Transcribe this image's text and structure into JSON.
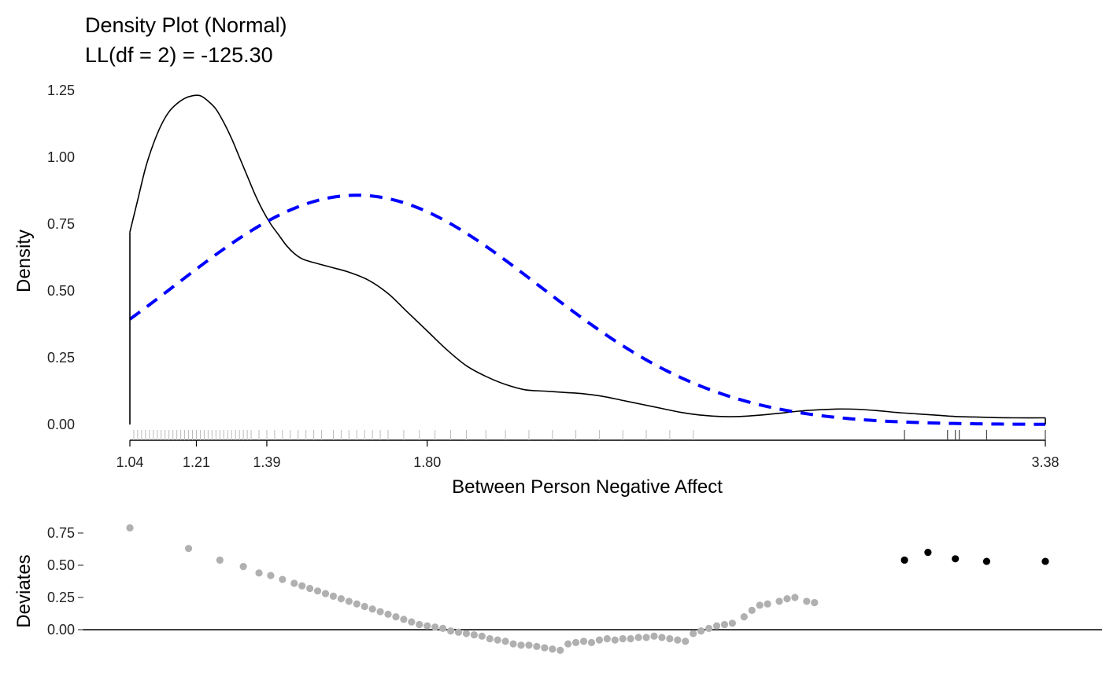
{
  "chart_data": [
    {
      "type": "line",
      "title": "Density Plot (Normal)",
      "subtitle": "LL(df = 2) = -125.30",
      "xlabel": "Between Person Negative Affect",
      "ylabel": "Density",
      "xlim": [
        1.04,
        3.38
      ],
      "ylim": [
        0,
        1.25
      ],
      "x_ticks": [
        "1.04",
        "1.21",
        "1.39",
        "1.80",
        "3.38"
      ],
      "y_ticks": [
        "0.00",
        "0.25",
        "0.50",
        "0.75",
        "1.00",
        "1.25"
      ],
      "grid": false,
      "colors": {
        "empirical": "#000000",
        "normal": "#0000ff",
        "rug": "#bbbbbb",
        "rug_outlier": "#444444"
      },
      "series": [
        {
          "style": "solid",
          "x": [
            1.04,
            1.06,
            1.08,
            1.1,
            1.12,
            1.14,
            1.16,
            1.18,
            1.2,
            1.22,
            1.24,
            1.26,
            1.28,
            1.3,
            1.32,
            1.34,
            1.36,
            1.38,
            1.4,
            1.42,
            1.44,
            1.46,
            1.48,
            1.5,
            1.55,
            1.6,
            1.65,
            1.7,
            1.75,
            1.8,
            1.85,
            1.9,
            1.95,
            2.0,
            2.05,
            2.1,
            2.15,
            2.2,
            2.25,
            2.3,
            2.35,
            2.4,
            2.45,
            2.5,
            2.55,
            2.6,
            2.65,
            2.7,
            2.75,
            2.8,
            2.85,
            2.9,
            2.95,
            3.0,
            3.05,
            3.1,
            3.15,
            3.2,
            3.25,
            3.3,
            3.38
          ],
          "y": [
            0.72,
            0.84,
            0.96,
            1.05,
            1.12,
            1.17,
            1.2,
            1.22,
            1.23,
            1.23,
            1.21,
            1.18,
            1.13,
            1.07,
            1.0,
            0.93,
            0.86,
            0.8,
            0.75,
            0.71,
            0.67,
            0.64,
            0.62,
            0.61,
            0.59,
            0.57,
            0.54,
            0.49,
            0.42,
            0.35,
            0.28,
            0.22,
            0.18,
            0.15,
            0.13,
            0.125,
            0.12,
            0.115,
            0.105,
            0.09,
            0.075,
            0.06,
            0.045,
            0.035,
            0.03,
            0.03,
            0.035,
            0.042,
            0.05,
            0.055,
            0.058,
            0.057,
            0.052,
            0.045,
            0.04,
            0.035,
            0.03,
            0.028,
            0.026,
            0.025,
            0.025
          ]
        },
        {
          "style": "dashed",
          "mean": 1.62,
          "sd": 0.465
        }
      ],
      "rug": [
        1.05,
        1.06,
        1.07,
        1.08,
        1.09,
        1.1,
        1.11,
        1.12,
        1.13,
        1.14,
        1.15,
        1.16,
        1.17,
        1.18,
        1.19,
        1.2,
        1.21,
        1.22,
        1.23,
        1.24,
        1.25,
        1.26,
        1.27,
        1.28,
        1.29,
        1.3,
        1.31,
        1.32,
        1.33,
        1.34,
        1.35,
        1.37,
        1.39,
        1.41,
        1.43,
        1.45,
        1.47,
        1.49,
        1.51,
        1.53,
        1.56,
        1.58,
        1.6,
        1.62,
        1.64,
        1.66,
        1.68,
        1.7,
        1.74,
        1.78,
        1.82,
        1.86,
        1.9,
        1.95,
        2.0,
        2.06,
        2.12,
        2.18,
        2.24,
        2.3,
        2.36,
        2.42,
        2.48
      ],
      "rug_outliers": [
        3.02,
        3.13,
        3.15,
        3.16,
        3.23,
        3.38
      ]
    },
    {
      "type": "scatter",
      "ylabel": "Deviates",
      "ylim": [
        -0.15,
        0.8
      ],
      "y_ticks": [
        "0.00",
        "0.25",
        "0.50",
        "0.75"
      ],
      "grid": false,
      "colors": {
        "points": "#b0b0b0",
        "extreme": "#000000",
        "zero_line": "#000000"
      },
      "points": [
        {
          "x": 1.04,
          "y": 0.79
        },
        {
          "x": 1.19,
          "y": 0.63
        },
        {
          "x": 1.27,
          "y": 0.54
        },
        {
          "x": 1.33,
          "y": 0.49
        },
        {
          "x": 1.37,
          "y": 0.44
        },
        {
          "x": 1.4,
          "y": 0.42
        },
        {
          "x": 1.43,
          "y": 0.39
        },
        {
          "x": 1.46,
          "y": 0.36
        },
        {
          "x": 1.48,
          "y": 0.34
        },
        {
          "x": 1.5,
          "y": 0.32
        },
        {
          "x": 1.52,
          "y": 0.3
        },
        {
          "x": 1.54,
          "y": 0.28
        },
        {
          "x": 1.56,
          "y": 0.26
        },
        {
          "x": 1.58,
          "y": 0.24
        },
        {
          "x": 1.6,
          "y": 0.22
        },
        {
          "x": 1.62,
          "y": 0.2
        },
        {
          "x": 1.64,
          "y": 0.18
        },
        {
          "x": 1.66,
          "y": 0.16
        },
        {
          "x": 1.68,
          "y": 0.14
        },
        {
          "x": 1.7,
          "y": 0.12
        },
        {
          "x": 1.72,
          "y": 0.1
        },
        {
          "x": 1.74,
          "y": 0.08
        },
        {
          "x": 1.76,
          "y": 0.06
        },
        {
          "x": 1.78,
          "y": 0.04
        },
        {
          "x": 1.8,
          "y": 0.03
        },
        {
          "x": 1.82,
          "y": 0.02
        },
        {
          "x": 1.84,
          "y": 0.01
        },
        {
          "x": 1.86,
          "y": -0.01
        },
        {
          "x": 1.88,
          "y": -0.02
        },
        {
          "x": 1.9,
          "y": -0.03
        },
        {
          "x": 1.92,
          "y": -0.04
        },
        {
          "x": 1.94,
          "y": -0.05
        },
        {
          "x": 1.96,
          "y": -0.07
        },
        {
          "x": 1.98,
          "y": -0.08
        },
        {
          "x": 2.0,
          "y": -0.09
        },
        {
          "x": 2.02,
          "y": -0.11
        },
        {
          "x": 2.04,
          "y": -0.12
        },
        {
          "x": 2.06,
          "y": -0.12
        },
        {
          "x": 2.08,
          "y": -0.13
        },
        {
          "x": 2.1,
          "y": -0.14
        },
        {
          "x": 2.12,
          "y": -0.15
        },
        {
          "x": 2.14,
          "y": -0.16
        },
        {
          "x": 2.16,
          "y": -0.11
        },
        {
          "x": 2.18,
          "y": -0.1
        },
        {
          "x": 2.2,
          "y": -0.09
        },
        {
          "x": 2.22,
          "y": -0.1
        },
        {
          "x": 2.24,
          "y": -0.08
        },
        {
          "x": 2.26,
          "y": -0.07
        },
        {
          "x": 2.28,
          "y": -0.08
        },
        {
          "x": 2.3,
          "y": -0.07
        },
        {
          "x": 2.32,
          "y": -0.07
        },
        {
          "x": 2.34,
          "y": -0.06
        },
        {
          "x": 2.36,
          "y": -0.06
        },
        {
          "x": 2.38,
          "y": -0.05
        },
        {
          "x": 2.4,
          "y": -0.06
        },
        {
          "x": 2.42,
          "y": -0.07
        },
        {
          "x": 2.44,
          "y": -0.08
        },
        {
          "x": 2.46,
          "y": -0.09
        },
        {
          "x": 2.48,
          "y": -0.03
        },
        {
          "x": 2.5,
          "y": -0.01
        },
        {
          "x": 2.52,
          "y": 0.01
        },
        {
          "x": 2.54,
          "y": 0.03
        },
        {
          "x": 2.56,
          "y": 0.04
        },
        {
          "x": 2.58,
          "y": 0.05
        },
        {
          "x": 2.61,
          "y": 0.1
        },
        {
          "x": 2.63,
          "y": 0.15
        },
        {
          "x": 2.65,
          "y": 0.19
        },
        {
          "x": 2.67,
          "y": 0.2
        },
        {
          "x": 2.7,
          "y": 0.22
        },
        {
          "x": 2.72,
          "y": 0.24
        },
        {
          "x": 2.74,
          "y": 0.25
        },
        {
          "x": 2.77,
          "y": 0.22
        },
        {
          "x": 2.79,
          "y": 0.21
        },
        {
          "x": 3.02,
          "y": 0.54,
          "extreme": true
        },
        {
          "x": 3.08,
          "y": 0.6,
          "extreme": true
        },
        {
          "x": 3.15,
          "y": 0.55,
          "extreme": true
        },
        {
          "x": 3.23,
          "y": 0.53,
          "extreme": true
        },
        {
          "x": 3.38,
          "y": 0.53,
          "extreme": true
        }
      ]
    }
  ]
}
